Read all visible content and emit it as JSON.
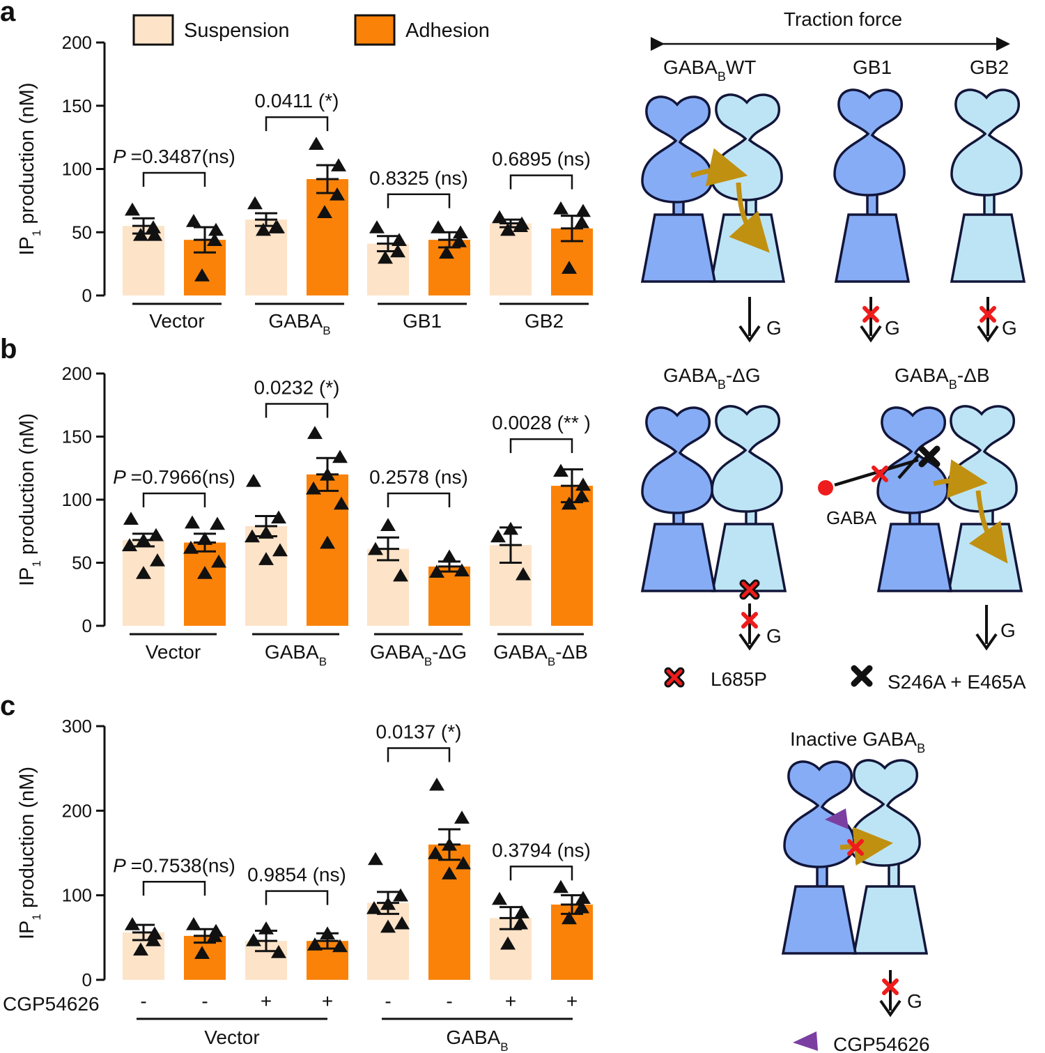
{
  "colors": {
    "suspension": "#fde3c8",
    "adhesion": "#fb8208",
    "gb1": "#86acf5",
    "gb2": "#bde4f4",
    "outline": "#12163a",
    "arrow": "#c09010",
    "cross": "#ee1c1c",
    "antagonist": "#7b3fa2"
  },
  "legend": {
    "suspension": "Suspension",
    "adhesion": "Adhesion"
  },
  "chart_data": [
    {
      "panel": "a",
      "type": "bar",
      "ylabel_main": "IP",
      "ylabel_sub": "1",
      "ylabel_rest": " production (nM)",
      "ylim": [
        0,
        200
      ],
      "yticks": [
        0,
        50,
        100,
        150,
        200
      ],
      "series": [
        "Suspension",
        "Adhesion"
      ],
      "groups": [
        {
          "label": "Vector",
          "sub": "",
          "label_rest": ""
        },
        {
          "label": "GABA",
          "sub": "B",
          "label_rest": ""
        },
        {
          "label": "GB1",
          "sub": "",
          "label_rest": ""
        },
        {
          "label": "GB2",
          "sub": "",
          "label_rest": ""
        }
      ],
      "bars": [
        {
          "g": 0,
          "s": 0,
          "mean": 55,
          "sem": 6,
          "pts": [
            68,
            48,
            54,
            48
          ]
        },
        {
          "g": 0,
          "s": 1,
          "mean": 44,
          "sem": 10,
          "pts": [
            59,
            52,
            44,
            16
          ]
        },
        {
          "g": 1,
          "s": 0,
          "mean": 60,
          "sem": 5,
          "pts": [
            73,
            54,
            54,
            52
          ]
        },
        {
          "g": 1,
          "s": 1,
          "mean": 92,
          "sem": 11,
          "pts": [
            120,
            103,
            80,
            66
          ]
        },
        {
          "g": 2,
          "s": 0,
          "mean": 41,
          "sem": 6,
          "pts": [
            54,
            44,
            35,
            30
          ]
        },
        {
          "g": 2,
          "s": 1,
          "mean": 44,
          "sem": 6,
          "pts": [
            54,
            50,
            43,
            34
          ]
        },
        {
          "g": 3,
          "s": 0,
          "mean": 57,
          "sem": 3,
          "pts": [
            62,
            57,
            55,
            52
          ]
        },
        {
          "g": 3,
          "s": 1,
          "mean": 53,
          "sem": 10,
          "pts": [
            69,
            67,
            58,
            22
          ]
        }
      ],
      "comparisons": [
        {
          "g": 0,
          "italicP": true,
          "text": "=0.3487(ns)",
          "height": 97
        },
        {
          "g": 1,
          "italicP": false,
          "text": "0.0411 (*)",
          "height": 141
        },
        {
          "g": 2,
          "italicP": false,
          "text": "0.8325 (ns)",
          "height": 80
        },
        {
          "g": 3,
          "italicP": false,
          "text": "0.6895 (ns)",
          "height": 95
        }
      ]
    },
    {
      "panel": "b",
      "type": "bar",
      "ylabel_main": "IP",
      "ylabel_sub": "1",
      "ylabel_rest": " production (nM)",
      "ylim": [
        0,
        200
      ],
      "yticks": [
        0,
        50,
        100,
        150,
        200
      ],
      "series": [
        "Suspension",
        "Adhesion"
      ],
      "groups": [
        {
          "label": "Vector",
          "sub": "",
          "label_rest": ""
        },
        {
          "label": "GABA",
          "sub": "B",
          "label_rest": ""
        },
        {
          "label": "GABA",
          "sub": "B",
          "label_rest": "-ΔG"
        },
        {
          "label": "GABA",
          "sub": "B",
          "label_rest": "-ΔB"
        }
      ],
      "bars": [
        {
          "g": 0,
          "s": 0,
          "mean": 68,
          "sem": 5,
          "pts": [
            85,
            72,
            68,
            64,
            52,
            42
          ]
        },
        {
          "g": 0,
          "s": 1,
          "mean": 66,
          "sem": 7,
          "pts": [
            82,
            81,
            69,
            62,
            51,
            42
          ]
        },
        {
          "g": 1,
          "s": 0,
          "mean": 79,
          "sem": 8,
          "pts": [
            115,
            86,
            74,
            71,
            60,
            53
          ]
        },
        {
          "g": 1,
          "s": 1,
          "mean": 120,
          "sem": 13,
          "pts": [
            153,
            134,
            120,
            109,
            97,
            66
          ]
        },
        {
          "g": 2,
          "s": 0,
          "mean": 61,
          "sem": 9,
          "pts": [
            80,
            61,
            40
          ]
        },
        {
          "g": 2,
          "s": 1,
          "mean": 47,
          "sem": 4,
          "pts": [
            55,
            43,
            44
          ]
        },
        {
          "g": 3,
          "s": 0,
          "mean": 64,
          "sem": 14,
          "pts": [
            77,
            71,
            41
          ]
        },
        {
          "g": 3,
          "s": 1,
          "mean": 111,
          "sem": 13,
          "pts": [
            123,
            112,
            103,
            97
          ]
        }
      ],
      "comparisons": [
        {
          "g": 0,
          "italicP": true,
          "text": "=0.7966(ns)",
          "height": 105
        },
        {
          "g": 1,
          "italicP": false,
          "text": "0.0232 (*)",
          "height": 176
        },
        {
          "g": 2,
          "italicP": false,
          "text": "0.2578 (ns)",
          "height": 105
        },
        {
          "g": 3,
          "italicP": false,
          "text": "0.0028 (** )",
          "height": 148
        }
      ]
    },
    {
      "panel": "c",
      "type": "bar",
      "ylabel_main": "IP",
      "ylabel_sub": "1",
      "ylabel_rest": " production (nM)",
      "ylim": [
        0,
        300
      ],
      "yticks": [
        0,
        100,
        200,
        300
      ],
      "series": [
        "Suspension",
        "Adhesion"
      ],
      "treatment_label": "CGP54626",
      "treatment": [
        "-",
        "-",
        "+",
        "+",
        "-",
        "-",
        "+",
        "+"
      ],
      "groups": [
        {
          "label": "Vector",
          "sub": "",
          "label_rest": ""
        },
        {
          "label": "GABA",
          "sub": "B",
          "label_rest": ""
        }
      ],
      "bars": [
        {
          "pos": 0,
          "s": 0,
          "mean": 56,
          "sem": 9,
          "pts": [
            66,
            55,
            47,
            36
          ]
        },
        {
          "pos": 1,
          "s": 1,
          "mean": 52,
          "sem": 8,
          "pts": [
            66,
            58,
            52,
            32
          ]
        },
        {
          "pos": 2,
          "s": 0,
          "mean": 46,
          "sem": 12,
          "pts": [
            61,
            47,
            33
          ]
        },
        {
          "pos": 3,
          "s": 1,
          "mean": 46,
          "sem": 9,
          "pts": [
            55,
            42,
            40
          ]
        },
        {
          "pos": 4,
          "s": 0,
          "mean": 91,
          "sem": 13,
          "pts": [
            143,
            100,
            90,
            85,
            67,
            63
          ]
        },
        {
          "pos": 5,
          "s": 1,
          "mean": 160,
          "sem": 18,
          "pts": [
            231,
            192,
            160,
            150,
            138,
            126
          ]
        },
        {
          "pos": 6,
          "s": 0,
          "mean": 73,
          "sem": 13,
          "pts": [
            96,
            80,
            67,
            43
          ]
        },
        {
          "pos": 7,
          "s": 1,
          "mean": 89,
          "sem": 11,
          "pts": [
            110,
            97,
            86,
            73
          ]
        }
      ],
      "comparisons": [
        {
          "pos": [
            0,
            1
          ],
          "italicP": true,
          "text": "=0.7538(ns)",
          "height": 116
        },
        {
          "pos": [
            2,
            3
          ],
          "italicP": false,
          "text": "0.9854 (ns)",
          "height": 105
        },
        {
          "pos": [
            4,
            5
          ],
          "italicP": false,
          "text": "0.0137 (*)",
          "height": 274
        },
        {
          "pos": [
            6,
            7
          ],
          "italicP": false,
          "text": "0.3794 (ns)",
          "height": 134
        }
      ]
    }
  ],
  "panels": {
    "a": "a",
    "b": "b",
    "c": "c"
  },
  "diagram": {
    "traction": "Traction force",
    "g": "G",
    "wt_label": "GABA",
    "wt_sub": "B",
    "wt_rest": "WT",
    "gb1_label": "GB1",
    "gb2_label": "GB2",
    "dg_label": "GABA",
    "dg_sub": "B",
    "dg_rest": "-ΔG",
    "db_label": "GABA",
    "db_sub": "B",
    "db_rest": "-ΔB",
    "gaba": "GABA",
    "l685p": "L685P",
    "s246a": "S246A + E465A",
    "inactive_label": "Inactive GABA",
    "inactive_sub": "B",
    "cgp": "CGP54626"
  }
}
